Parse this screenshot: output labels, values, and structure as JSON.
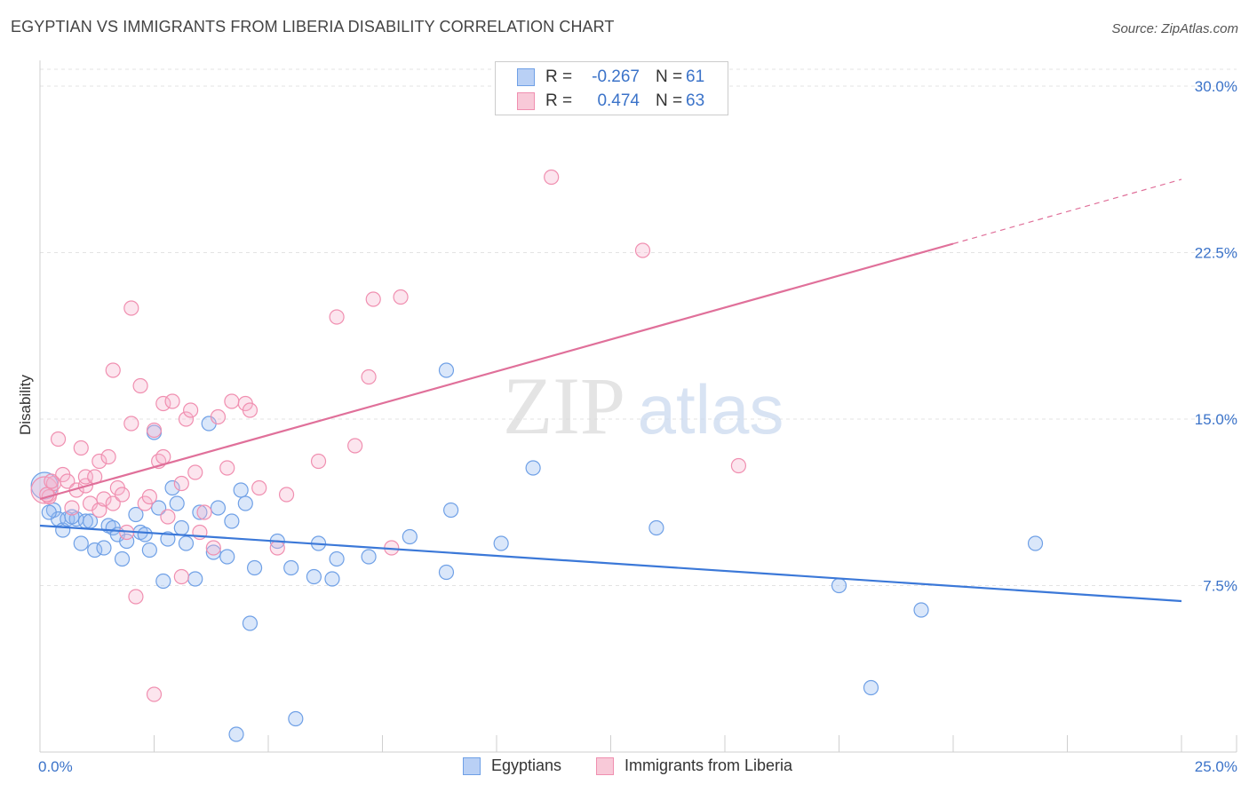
{
  "title": "EGYPTIAN VS IMMIGRANTS FROM LIBERIA DISABILITY CORRELATION CHART",
  "source": "Source: ZipAtlas.com",
  "watermark": {
    "zip": "ZIP",
    "atlas": "atlas"
  },
  "legend_top": {
    "r_label": "R =",
    "n_label": "N =",
    "rows": [
      {
        "r": "-0.267",
        "n": "61",
        "color": "#6fa0e6",
        "fill": "#b9d0f5"
      },
      {
        "r": "0.474",
        "n": "63",
        "color": "#f08fb0",
        "fill": "#f8c9d8"
      }
    ]
  },
  "legend_bottom": [
    {
      "label": "Egyptians",
      "color": "#6fa0e6",
      "fill": "#b9d0f5"
    },
    {
      "label": "Immigrants from Liberia",
      "color": "#f08fb0",
      "fill": "#f8c9d8"
    }
  ],
  "chart_data": {
    "type": "scatter",
    "title": "EGYPTIAN VS IMMIGRANTS FROM LIBERIA DISABILITY CORRELATION CHART",
    "xlabel": "",
    "ylabel": "Disability",
    "xlim": [
      0,
      25
    ],
    "ylim": [
      0,
      31
    ],
    "x_tick_labels": [
      {
        "value": 0,
        "label": "0.0%"
      },
      {
        "value": 25,
        "label": "25.0%"
      }
    ],
    "y_tick_labels": [
      {
        "value": 7.5,
        "label": "7.5%"
      },
      {
        "value": 15,
        "label": "15.0%"
      },
      {
        "value": 22.5,
        "label": "22.5%"
      },
      {
        "value": 30,
        "label": "30.0%"
      }
    ],
    "x_minor_ticks": [
      2.5,
      5,
      7.5,
      10,
      12.5,
      15,
      17.5,
      20,
      22.5,
      25
    ],
    "grid": true,
    "series": [
      {
        "name": "Egyptians",
        "color": "#3b78d8",
        "marker_stroke": "#6fa0e6",
        "marker_fill": "rgba(150,185,240,0.35)",
        "trend": {
          "x0": 0,
          "y0": 10.2,
          "x1": 25,
          "y1": 6.8
        },
        "points": [
          [
            0.1,
            12.0
          ],
          [
            0.3,
            10.9
          ],
          [
            0.4,
            10.5
          ],
          [
            0.5,
            10.0
          ],
          [
            0.6,
            10.5
          ],
          [
            0.8,
            10.5
          ],
          [
            0.9,
            9.4
          ],
          [
            1.0,
            10.4
          ],
          [
            1.2,
            9.1
          ],
          [
            1.4,
            9.2
          ],
          [
            1.5,
            10.2
          ],
          [
            1.6,
            10.1
          ],
          [
            1.7,
            9.8
          ],
          [
            1.8,
            8.7
          ],
          [
            1.9,
            9.5
          ],
          [
            2.1,
            10.7
          ],
          [
            2.2,
            9.9
          ],
          [
            2.3,
            9.8
          ],
          [
            2.4,
            9.1
          ],
          [
            2.5,
            14.4
          ],
          [
            2.6,
            11.0
          ],
          [
            2.7,
            7.7
          ],
          [
            2.8,
            9.6
          ],
          [
            2.9,
            11.9
          ],
          [
            3.0,
            11.2
          ],
          [
            3.1,
            10.1
          ],
          [
            3.2,
            9.4
          ],
          [
            3.4,
            7.8
          ],
          [
            3.5,
            10.8
          ],
          [
            3.7,
            14.8
          ],
          [
            3.8,
            9.0
          ],
          [
            3.9,
            11.0
          ],
          [
            4.1,
            8.8
          ],
          [
            4.2,
            10.4
          ],
          [
            4.4,
            11.8
          ],
          [
            4.5,
            11.2
          ],
          [
            4.7,
            8.3
          ],
          [
            4.6,
            5.8
          ],
          [
            4.3,
            0.8
          ],
          [
            5.2,
            9.5
          ],
          [
            5.5,
            8.3
          ],
          [
            5.6,
            1.5
          ],
          [
            6.0,
            7.9
          ],
          [
            6.1,
            9.4
          ],
          [
            6.4,
            7.8
          ],
          [
            6.5,
            8.7
          ],
          [
            7.2,
            8.8
          ],
          [
            8.1,
            9.7
          ],
          [
            8.9,
            17.2
          ],
          [
            8.9,
            8.1
          ],
          [
            9.0,
            10.9
          ],
          [
            10.1,
            9.4
          ],
          [
            10.8,
            12.8
          ],
          [
            13.5,
            10.1
          ],
          [
            17.5,
            7.5
          ],
          [
            18.2,
            2.9
          ],
          [
            19.3,
            6.4
          ],
          [
            21.8,
            9.4
          ],
          [
            0.2,
            10.8
          ],
          [
            0.7,
            10.6
          ],
          [
            1.1,
            10.4
          ]
        ]
      },
      {
        "name": "Immigrants from Liberia",
        "color": "#e0709a",
        "marker_stroke": "#f08fb0",
        "marker_fill": "rgba(245,180,205,0.35)",
        "trend": {
          "x0": 0,
          "y0": 11.4,
          "x1": 20,
          "y1": 22.9,
          "dash_x1": 25,
          "dash_y1": 25.8
        },
        "points": [
          [
            0.1,
            11.8
          ],
          [
            0.2,
            11.5
          ],
          [
            0.3,
            12.1
          ],
          [
            0.4,
            14.1
          ],
          [
            0.5,
            12.5
          ],
          [
            0.6,
            12.2
          ],
          [
            0.7,
            11.0
          ],
          [
            0.8,
            11.8
          ],
          [
            0.9,
            13.7
          ],
          [
            1.0,
            12.0
          ],
          [
            1.1,
            11.2
          ],
          [
            1.0,
            12.4
          ],
          [
            1.2,
            12.4
          ],
          [
            1.3,
            10.9
          ],
          [
            1.3,
            13.1
          ],
          [
            1.4,
            11.4
          ],
          [
            1.5,
            13.3
          ],
          [
            1.6,
            11.2
          ],
          [
            1.7,
            11.9
          ],
          [
            1.6,
            17.2
          ],
          [
            1.8,
            11.6
          ],
          [
            1.9,
            9.9
          ],
          [
            2.0,
            14.8
          ],
          [
            2.0,
            20.0
          ],
          [
            2.1,
            7.0
          ],
          [
            2.2,
            16.5
          ],
          [
            2.3,
            11.2
          ],
          [
            2.4,
            11.5
          ],
          [
            2.5,
            14.5
          ],
          [
            2.5,
            2.6
          ],
          [
            2.6,
            13.1
          ],
          [
            2.7,
            13.3
          ],
          [
            2.7,
            15.7
          ],
          [
            2.8,
            10.6
          ],
          [
            2.9,
            15.8
          ],
          [
            3.1,
            7.9
          ],
          [
            3.1,
            12.1
          ],
          [
            3.2,
            15.0
          ],
          [
            3.3,
            15.4
          ],
          [
            3.4,
            12.6
          ],
          [
            3.5,
            9.9
          ],
          [
            3.6,
            10.8
          ],
          [
            3.8,
            9.2
          ],
          [
            3.9,
            15.1
          ],
          [
            4.1,
            12.8
          ],
          [
            4.2,
            15.8
          ],
          [
            4.5,
            15.7
          ],
          [
            4.6,
            15.4
          ],
          [
            4.8,
            11.9
          ],
          [
            5.2,
            9.2
          ],
          [
            5.4,
            11.6
          ],
          [
            6.1,
            13.1
          ],
          [
            6.5,
            19.6
          ],
          [
            6.9,
            13.8
          ],
          [
            7.2,
            16.9
          ],
          [
            7.3,
            20.4
          ],
          [
            7.7,
            9.2
          ],
          [
            7.9,
            20.5
          ],
          [
            11.2,
            25.9
          ],
          [
            13.2,
            22.6
          ],
          [
            15.3,
            12.9
          ],
          [
            0.15,
            11.6
          ],
          [
            0.25,
            12.2
          ]
        ]
      }
    ]
  }
}
